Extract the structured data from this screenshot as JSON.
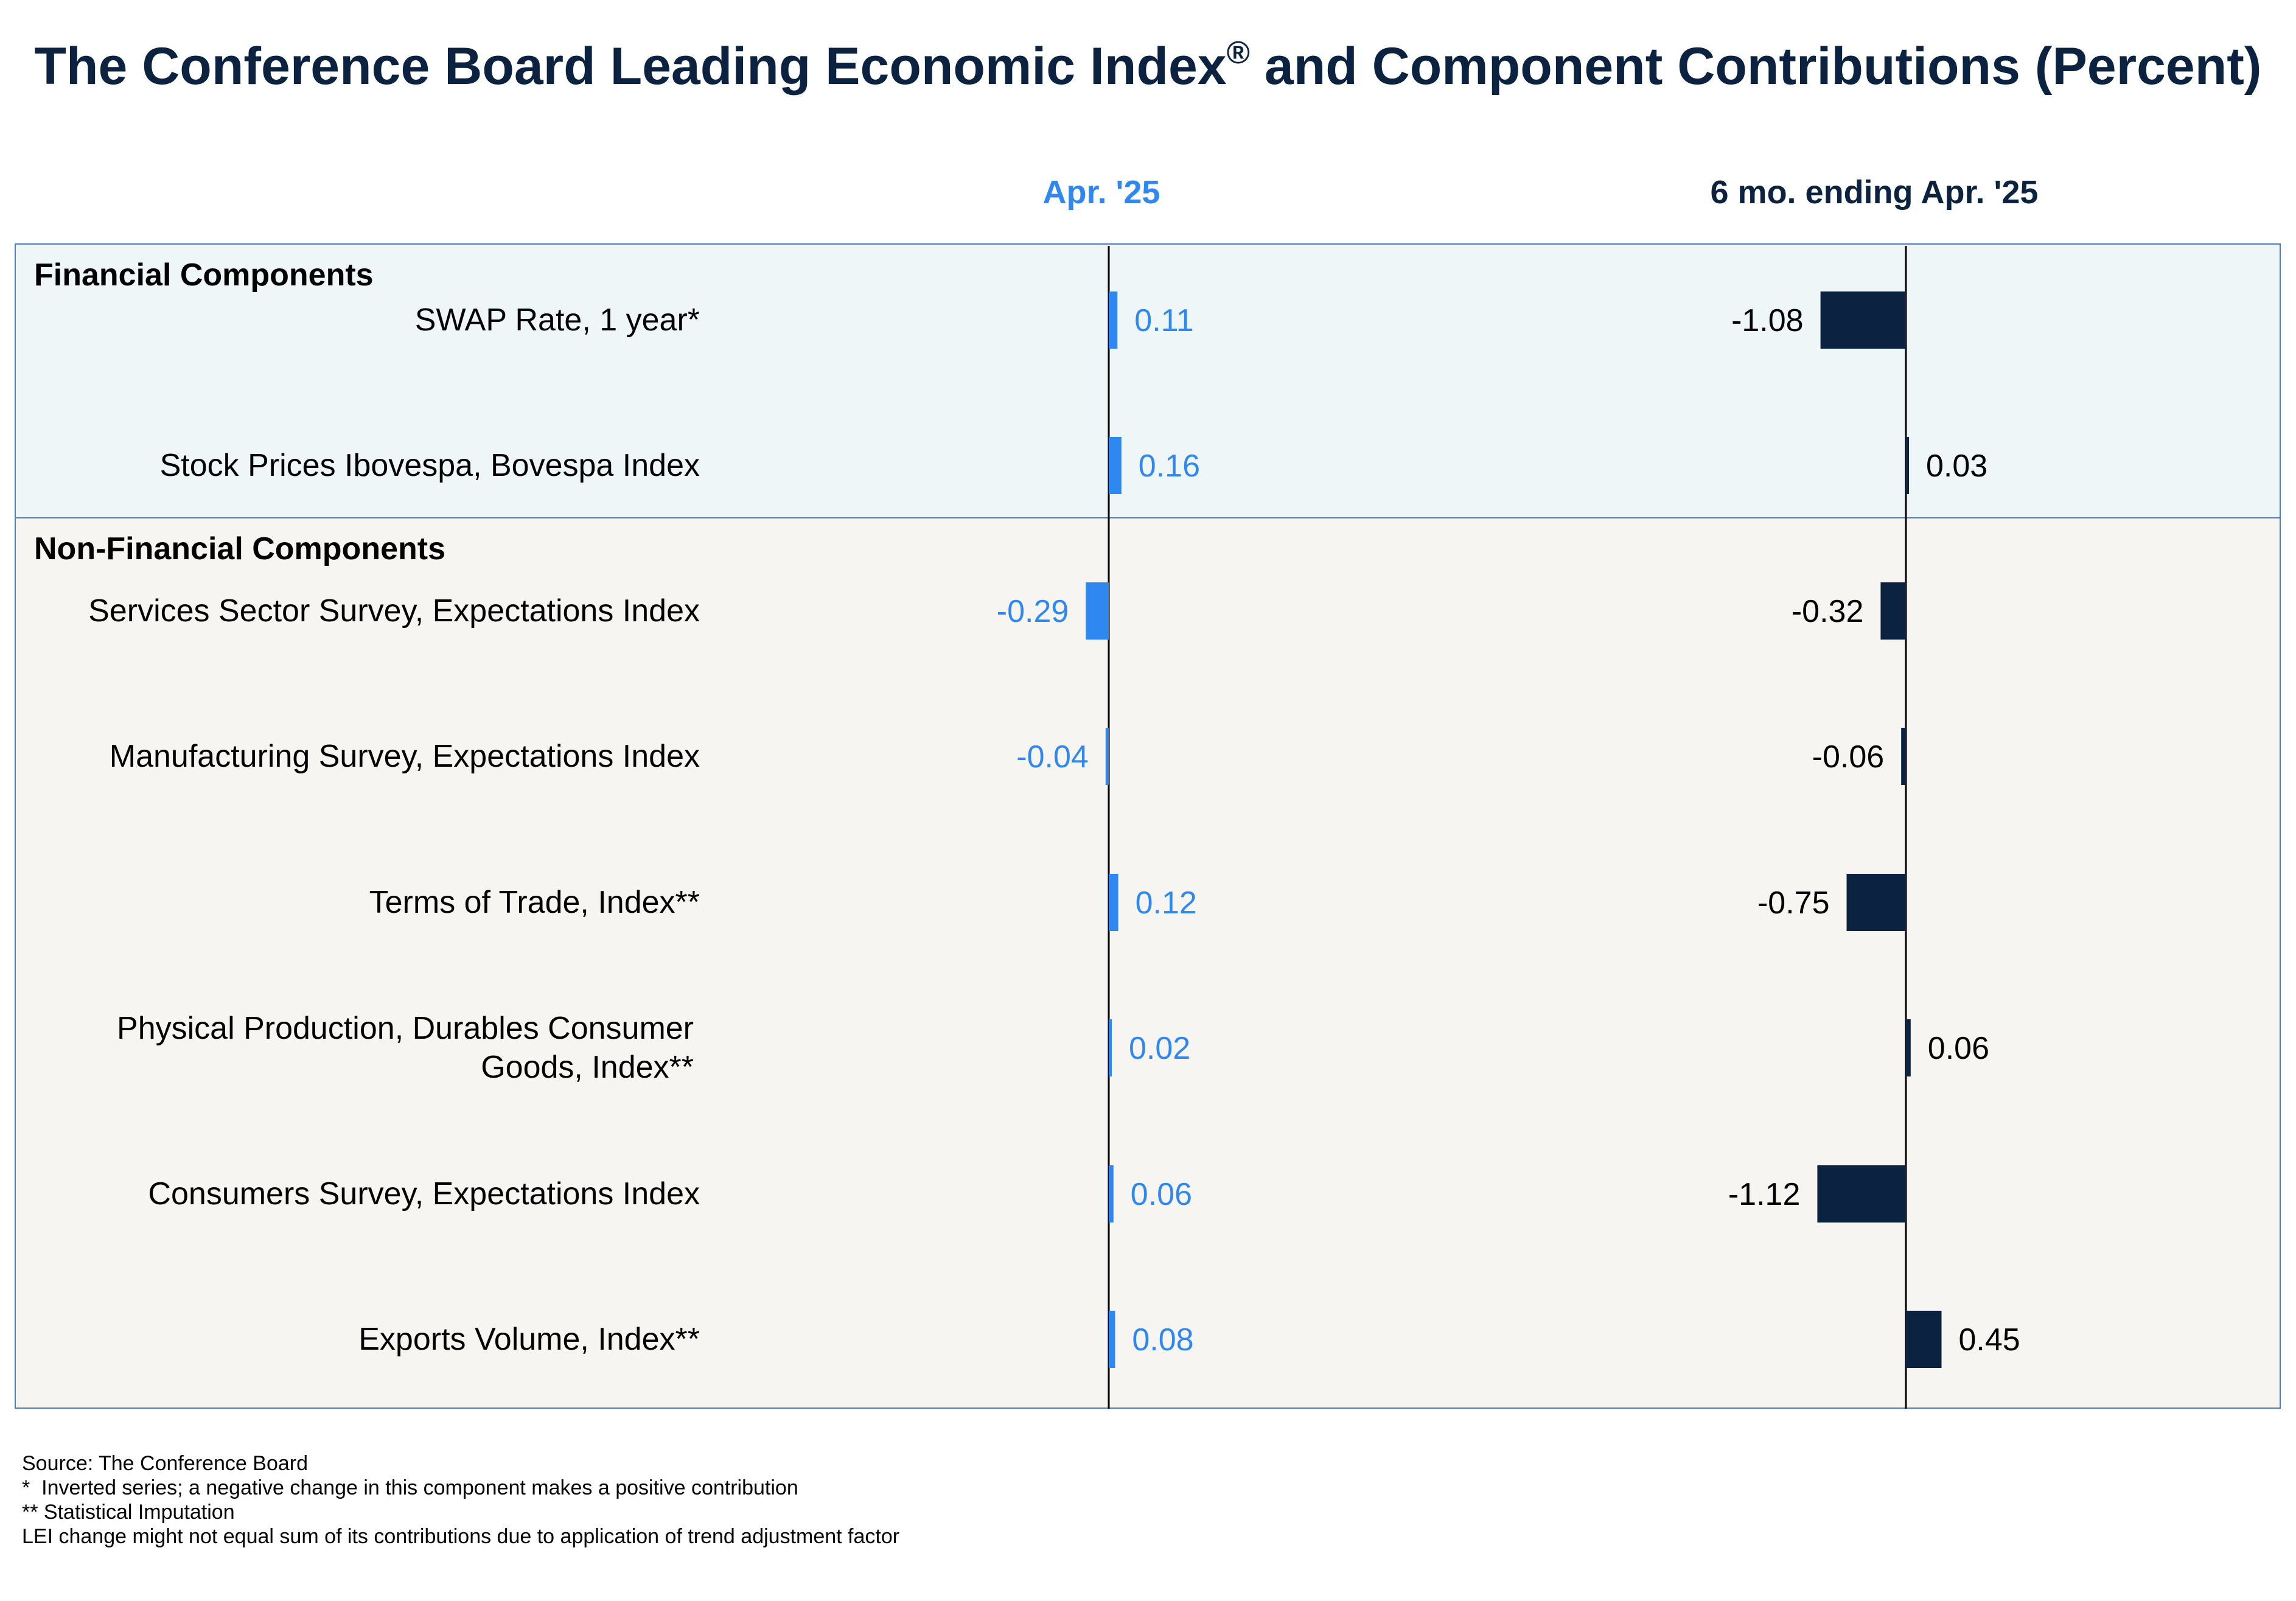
{
  "title": "The Conference Board Leading Economic Index",
  "title_mark": "®",
  "title_suffix": " and Component Contributions (Percent)",
  "chart_data": {
    "type": "bar",
    "orientation": "horizontal",
    "panels": [
      {
        "header": "Apr. '25",
        "color": "#2f87f0",
        "label_color": "#2f87f0"
      },
      {
        "header": "6 mo. ending Apr. '25",
        "color": "#0b2240",
        "label_color": "#000000"
      }
    ],
    "groups": [
      {
        "name": "Financial Components",
        "background": "#eef6f8"
      },
      {
        "name": "Non-Financial Components",
        "background": "#f6f5f1"
      }
    ],
    "categories": [
      {
        "label": "SWAP Rate, 1 year*",
        "group": "Financial Components"
      },
      {
        "label": "Stock Prices Ibovespa, Bovespa Index",
        "group": "Financial Components"
      },
      {
        "label": "Services Sector Survey, Expectations Index",
        "group": "Non-Financial Components"
      },
      {
        "label": "Manufacturing Survey, Expectations Index",
        "group": "Non-Financial Components"
      },
      {
        "label": "Terms of Trade, Index**",
        "group": "Non-Financial Components"
      },
      {
        "label": "Physical Production, Durables Consumer Goods, Index**",
        "group": "Non-Financial Components"
      },
      {
        "label": "Consumers Survey, Expectations Index",
        "group": "Non-Financial Components"
      },
      {
        "label": "Exports Volume, Index**",
        "group": "Non-Financial Components"
      }
    ],
    "series": [
      {
        "name": "Apr. '25",
        "values": [
          0.11,
          0.16,
          -0.29,
          -0.04,
          0.12,
          0.02,
          0.06,
          0.08
        ],
        "value_labels": [
          "0.11",
          "0.16",
          "-0.29",
          "-0.04",
          "0.12",
          "0.02",
          "0.06",
          "0.08"
        ]
      },
      {
        "name": "6 mo. ending Apr. '25",
        "values": [
          -1.08,
          0.03,
          -0.32,
          -0.06,
          -0.75,
          0.06,
          -1.12,
          0.45
        ],
        "value_labels": [
          "-1.08",
          "0.03",
          "-0.32",
          "-0.06",
          "-0.75",
          "0.06",
          "-1.12",
          "0.45"
        ]
      }
    ],
    "grid": false,
    "legend": "none"
  },
  "footnotes": [
    "Source: The Conference Board",
    "*  Inverted series; a negative change in this component makes a positive contribution",
    "** Statistical Imputation",
    "LEI change might not equal sum of its contributions due to application of trend adjustment factor"
  ]
}
